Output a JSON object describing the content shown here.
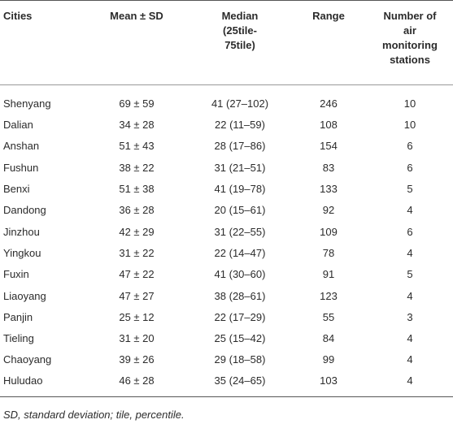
{
  "headers": [
    "Cities",
    "Mean ± SD",
    "Median (25tile-75tile)",
    "Range",
    "Number of air monitoring stations"
  ],
  "header_lines": [
    [
      "Cities"
    ],
    [
      "Mean ± SD"
    ],
    [
      "Median",
      "(25tile-",
      "75tile)"
    ],
    [
      "Range"
    ],
    [
      "Number of",
      "air",
      "monitoring",
      "stations"
    ]
  ],
  "rows": [
    [
      "Shenyang",
      "69 ± 59",
      "41 (27–102)",
      "246",
      "10"
    ],
    [
      "Dalian",
      "34 ± 28",
      "22 (11–59)",
      "108",
      "10"
    ],
    [
      "Anshan",
      "51 ± 43",
      "28 (17–86)",
      "154",
      "6"
    ],
    [
      "Fushun",
      "38 ± 22",
      "31 (21–51)",
      "83",
      "6"
    ],
    [
      "Benxi",
      "51 ± 38",
      "41 (19–78)",
      "133",
      "5"
    ],
    [
      "Dandong",
      "36 ± 28",
      "20 (15–61)",
      "92",
      "4"
    ],
    [
      "Jinzhou",
      "42 ± 29",
      "31 (22–55)",
      "109",
      "6"
    ],
    [
      "Yingkou",
      "31 ± 22",
      "22 (14–47)",
      "78",
      "4"
    ],
    [
      "Fuxin",
      "47 ± 22",
      "41 (30–60)",
      "91",
      "5"
    ],
    [
      "Liaoyang",
      "47 ± 27",
      "38 (28–61)",
      "123",
      "4"
    ],
    [
      "Panjin",
      "25 ± 12",
      "22 (17–29)",
      "55",
      "3"
    ],
    [
      "Tieling",
      "31 ± 20",
      "25 (15–42)",
      "84",
      "4"
    ],
    [
      "Chaoyang",
      "39 ± 26",
      "29 (18–58)",
      "99",
      "4"
    ],
    [
      "Huludao",
      "46 ± 28",
      "35 (24–65)",
      "103",
      "4"
    ]
  ],
  "footnote": "SD, standard deviation; tile, percentile."
}
